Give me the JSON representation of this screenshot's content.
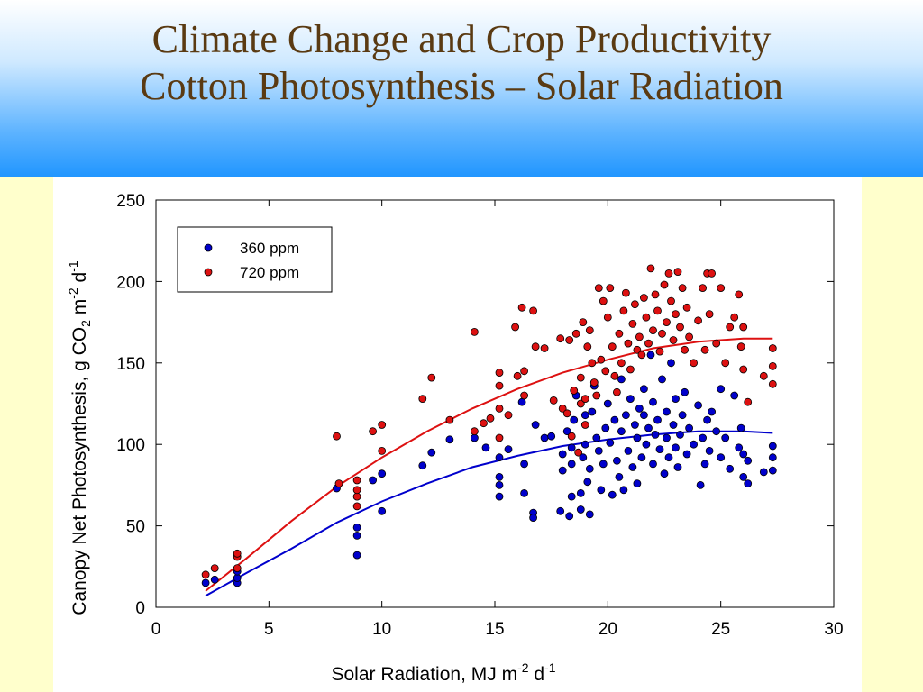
{
  "title": {
    "line1": "Climate Change and Crop Productivity",
    "line2": "Cotton Photosynthesis – Solar Radiation"
  },
  "colors": {
    "header_top": "#ffffff",
    "header_bottom": "#2196ff",
    "title_text": "#5a3a12",
    "background": "#ffffcc",
    "series_360": "#0000cc",
    "series_720": "#dd1111"
  },
  "chart_data": {
    "type": "scatter",
    "xlabel": "Solar Radiation, MJ m-2 d-1",
    "ylabel": "Canopy Net Photosynthesis, g CO2 m-2 d-1",
    "xlim": [
      0,
      30
    ],
    "ylim": [
      0,
      250
    ],
    "xticks": [
      0,
      5,
      10,
      15,
      20,
      25,
      30
    ],
    "yticks": [
      0,
      50,
      100,
      150,
      200,
      250
    ],
    "grid": false,
    "legend_position": "top-left",
    "series": [
      {
        "name": "360 ppm",
        "color": "#0000cc",
        "points": [
          [
            2.2,
            15
          ],
          [
            2.6,
            17
          ],
          [
            3.6,
            15
          ],
          [
            3.6,
            18
          ],
          [
            3.6,
            22
          ],
          [
            8.0,
            73
          ],
          [
            8.9,
            32
          ],
          [
            8.9,
            44
          ],
          [
            8.9,
            49
          ],
          [
            9.6,
            78
          ],
          [
            10.0,
            82
          ],
          [
            10.0,
            59
          ],
          [
            11.8,
            87
          ],
          [
            12.2,
            95
          ],
          [
            13.0,
            103
          ],
          [
            14.1,
            104
          ],
          [
            14.6,
            98
          ],
          [
            15.2,
            68
          ],
          [
            15.2,
            75
          ],
          [
            15.2,
            80
          ],
          [
            15.2,
            92
          ],
          [
            15.6,
            97
          ],
          [
            16.2,
            126
          ],
          [
            16.3,
            88
          ],
          [
            16.3,
            70
          ],
          [
            16.7,
            58
          ],
          [
            16.7,
            55
          ],
          [
            16.8,
            112
          ],
          [
            17.2,
            104
          ],
          [
            17.5,
            105
          ],
          [
            17.9,
            59
          ],
          [
            18.0,
            94
          ],
          [
            18.0,
            84
          ],
          [
            18.2,
            108
          ],
          [
            18.3,
            56
          ],
          [
            18.4,
            88
          ],
          [
            18.4,
            98
          ],
          [
            18.4,
            68
          ],
          [
            18.5,
            115
          ],
          [
            18.6,
            130
          ],
          [
            18.8,
            60
          ],
          [
            18.8,
            70
          ],
          [
            18.9,
            92
          ],
          [
            19.0,
            100
          ],
          [
            19.0,
            118
          ],
          [
            19.1,
            77
          ],
          [
            19.2,
            57
          ],
          [
            19.2,
            85
          ],
          [
            19.3,
            120
          ],
          [
            19.4,
            136
          ],
          [
            19.5,
            104
          ],
          [
            19.6,
            96
          ],
          [
            19.7,
            72
          ],
          [
            19.8,
            88
          ],
          [
            19.9,
            110
          ],
          [
            20.0,
            125
          ],
          [
            20.1,
            101
          ],
          [
            20.2,
            69
          ],
          [
            20.3,
            115
          ],
          [
            20.4,
            90
          ],
          [
            20.5,
            80
          ],
          [
            20.6,
            140
          ],
          [
            20.6,
            108
          ],
          [
            20.7,
            72
          ],
          [
            20.8,
            118
          ],
          [
            20.9,
            96
          ],
          [
            21.0,
            128
          ],
          [
            21.1,
            86
          ],
          [
            21.2,
            112
          ],
          [
            21.3,
            76
          ],
          [
            21.3,
            104
          ],
          [
            21.4,
            122
          ],
          [
            21.5,
            92
          ],
          [
            21.6,
            118
          ],
          [
            21.6,
            134
          ],
          [
            21.7,
            100
          ],
          [
            21.8,
            110
          ],
          [
            21.9,
            155
          ],
          [
            22.0,
            88
          ],
          [
            22.0,
            126
          ],
          [
            22.1,
            106
          ],
          [
            22.2,
            115
          ],
          [
            22.3,
            97
          ],
          [
            22.4,
            140
          ],
          [
            22.5,
            82
          ],
          [
            22.6,
            120
          ],
          [
            22.6,
            104
          ],
          [
            22.7,
            92
          ],
          [
            22.8,
            150
          ],
          [
            22.9,
            112
          ],
          [
            23.0,
            98
          ],
          [
            23.0,
            128
          ],
          [
            23.1,
            86
          ],
          [
            23.2,
            106
          ],
          [
            23.3,
            118
          ],
          [
            23.4,
            132
          ],
          [
            23.5,
            94
          ],
          [
            23.6,
            110
          ],
          [
            23.8,
            100
          ],
          [
            24.0,
            124
          ],
          [
            24.1,
            75
          ],
          [
            24.2,
            104
          ],
          [
            24.3,
            88
          ],
          [
            24.4,
            115
          ],
          [
            24.5,
            96
          ],
          [
            24.6,
            120
          ],
          [
            24.8,
            108
          ],
          [
            25.0,
            92
          ],
          [
            25.0,
            134
          ],
          [
            25.2,
            104
          ],
          [
            25.4,
            85
          ],
          [
            25.6,
            130
          ],
          [
            25.8,
            98
          ],
          [
            25.9,
            110
          ],
          [
            26.0,
            80
          ],
          [
            26.0,
            94
          ],
          [
            26.2,
            90
          ],
          [
            26.2,
            76
          ],
          [
            26.9,
            83
          ],
          [
            27.3,
            84
          ],
          [
            27.3,
            92
          ],
          [
            27.3,
            99
          ]
        ],
        "fit": [
          [
            2.2,
            7
          ],
          [
            4,
            21
          ],
          [
            6,
            36
          ],
          [
            8,
            52
          ],
          [
            10,
            65
          ],
          [
            12,
            76
          ],
          [
            14,
            86
          ],
          [
            16,
            93
          ],
          [
            18,
            99
          ],
          [
            20,
            103
          ],
          [
            22,
            106
          ],
          [
            24,
            108
          ],
          [
            26,
            108
          ],
          [
            27.3,
            107
          ]
        ]
      },
      {
        "name": "720 ppm",
        "color": "#dd1111",
        "points": [
          [
            2.2,
            20
          ],
          [
            2.6,
            24
          ],
          [
            3.6,
            24
          ],
          [
            3.6,
            31
          ],
          [
            3.6,
            33
          ],
          [
            8.0,
            105
          ],
          [
            8.1,
            76
          ],
          [
            8.9,
            62
          ],
          [
            8.9,
            68
          ],
          [
            8.9,
            72
          ],
          [
            8.9,
            78
          ],
          [
            9.6,
            108
          ],
          [
            10.0,
            112
          ],
          [
            10.0,
            96
          ],
          [
            11.8,
            128
          ],
          [
            12.2,
            141
          ],
          [
            13.0,
            115
          ],
          [
            14.1,
            169
          ],
          [
            14.1,
            108
          ],
          [
            14.5,
            113
          ],
          [
            14.8,
            116
          ],
          [
            15.2,
            144
          ],
          [
            15.2,
            136
          ],
          [
            15.2,
            122
          ],
          [
            15.2,
            104
          ],
          [
            15.6,
            118
          ],
          [
            15.9,
            172
          ],
          [
            16.0,
            142
          ],
          [
            16.2,
            184
          ],
          [
            16.3,
            145
          ],
          [
            16.3,
            130
          ],
          [
            16.7,
            182
          ],
          [
            16.8,
            160
          ],
          [
            17.2,
            159
          ],
          [
            17.6,
            127
          ],
          [
            17.9,
            165
          ],
          [
            18.0,
            122
          ],
          [
            18.2,
            119
          ],
          [
            18.3,
            164
          ],
          [
            18.4,
            105
          ],
          [
            18.5,
            133
          ],
          [
            18.6,
            168
          ],
          [
            18.7,
            95
          ],
          [
            18.8,
            141
          ],
          [
            18.8,
            125
          ],
          [
            18.9,
            175
          ],
          [
            19.0,
            128
          ],
          [
            19.0,
            112
          ],
          [
            19.1,
            160
          ],
          [
            19.2,
            170
          ],
          [
            19.3,
            150
          ],
          [
            19.4,
            138
          ],
          [
            19.5,
            130
          ],
          [
            19.6,
            196
          ],
          [
            19.7,
            152
          ],
          [
            19.8,
            188
          ],
          [
            19.9,
            145
          ],
          [
            20.0,
            178
          ],
          [
            20.1,
            196
          ],
          [
            20.2,
            160
          ],
          [
            20.3,
            142
          ],
          [
            20.4,
            132
          ],
          [
            20.5,
            168
          ],
          [
            20.6,
            150
          ],
          [
            20.7,
            182
          ],
          [
            20.8,
            193
          ],
          [
            20.9,
            162
          ],
          [
            21.0,
            146
          ],
          [
            21.1,
            174
          ],
          [
            21.2,
            186
          ],
          [
            21.3,
            158
          ],
          [
            21.4,
            166
          ],
          [
            21.5,
            155
          ],
          [
            21.6,
            190
          ],
          [
            21.7,
            178
          ],
          [
            21.8,
            162
          ],
          [
            21.9,
            208
          ],
          [
            22.0,
            170
          ],
          [
            22.1,
            192
          ],
          [
            22.2,
            182
          ],
          [
            22.3,
            157
          ],
          [
            22.4,
            168
          ],
          [
            22.5,
            198
          ],
          [
            22.6,
            175
          ],
          [
            22.7,
            205
          ],
          [
            22.8,
            188
          ],
          [
            22.9,
            164
          ],
          [
            23.0,
            180
          ],
          [
            23.1,
            206
          ],
          [
            23.2,
            172
          ],
          [
            23.3,
            196
          ],
          [
            23.4,
            158
          ],
          [
            23.5,
            184
          ],
          [
            23.6,
            166
          ],
          [
            23.8,
            150
          ],
          [
            24.0,
            176
          ],
          [
            24.2,
            196
          ],
          [
            24.3,
            158
          ],
          [
            24.4,
            205
          ],
          [
            24.5,
            180
          ],
          [
            24.6,
            205
          ],
          [
            24.8,
            162
          ],
          [
            25.0,
            196
          ],
          [
            25.2,
            150
          ],
          [
            25.4,
            172
          ],
          [
            25.6,
            178
          ],
          [
            25.8,
            192
          ],
          [
            25.9,
            160
          ],
          [
            26.0,
            172
          ],
          [
            26.0,
            146
          ],
          [
            26.2,
            126
          ],
          [
            26.9,
            142
          ],
          [
            27.3,
            159
          ],
          [
            27.3,
            148
          ],
          [
            27.3,
            137
          ]
        ],
        "fit": [
          [
            2.2,
            10
          ],
          [
            4,
            30
          ],
          [
            6,
            53
          ],
          [
            8,
            74
          ],
          [
            10,
            92
          ],
          [
            12,
            108
          ],
          [
            14,
            122
          ],
          [
            16,
            134
          ],
          [
            18,
            144
          ],
          [
            20,
            152
          ],
          [
            22,
            159
          ],
          [
            24,
            163
          ],
          [
            26,
            165
          ],
          [
            27.3,
            165
          ]
        ]
      }
    ]
  }
}
